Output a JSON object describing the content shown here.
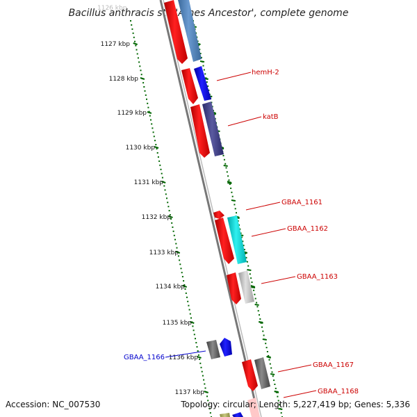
{
  "title": "Bacillus anthracis str. 'Ames Ancestor', complete genome",
  "accession": "Accession: NC_007530",
  "topology": "Topology: circular; Length: 5,227,419 bp; Genes: 5,336",
  "top_faded_label": "1126 kbp",
  "kbp_ticks": [
    "1127 kbp",
    "1128 kbp",
    "1129 kbp",
    "1130 kbp",
    "1131 kbp",
    "1132 kbp",
    "1133 kbp",
    "1134 kbp",
    "1135 kbp",
    "1136 kbp",
    "1137 kbp"
  ],
  "gene_labels": [
    {
      "text": "hemH-2",
      "color": "#cc0000"
    },
    {
      "text": "katB",
      "color": "#cc0000"
    },
    {
      "text": "GBAA_1161",
      "color": "#cc0000"
    },
    {
      "text": "GBAA_1162",
      "color": "#cc0000"
    },
    {
      "text": "GBAA_1163",
      "color": "#cc0000"
    },
    {
      "text": "GBAA_1166",
      "color": "#0000cc"
    },
    {
      "text": "GBAA_1167",
      "color": "#cc0000"
    },
    {
      "text": "GBAA_1168",
      "color": "#cc0000"
    }
  ],
  "colors": {
    "forward_strand_gene": "#ff0000",
    "reverse_strand_gene": "#0000ff",
    "backbone": "#888888",
    "gc_dots": "#006600",
    "label_red": "#cc0000",
    "label_blue": "#0000cc"
  }
}
